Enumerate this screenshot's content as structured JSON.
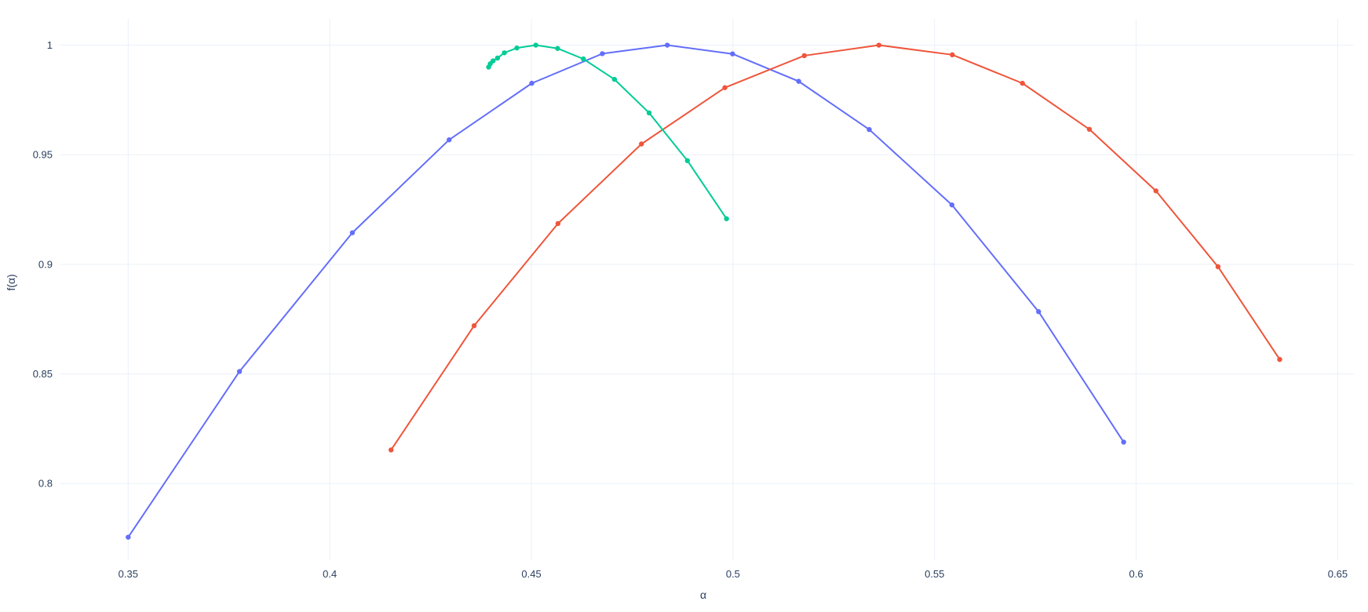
{
  "chart_data": {
    "type": "line",
    "title": "",
    "xlabel": "α",
    "ylabel": "f(α)",
    "xlim": [
      0.333,
      0.654
    ],
    "ylim": [
      0.765,
      1.012
    ],
    "x_ticks": [
      0.35,
      0.4,
      0.45,
      0.5,
      0.55,
      0.6,
      0.65
    ],
    "x_tick_labels": [
      "0.35",
      "0.4",
      "0.45",
      "0.5",
      "0.55",
      "0.6",
      "0.65"
    ],
    "y_ticks": [
      0.8,
      0.85,
      0.9,
      0.95,
      1.0
    ],
    "y_tick_labels": [
      "0.8",
      "0.85",
      "0.9",
      "0.95",
      "1"
    ],
    "grid": true,
    "legend": "none",
    "series": [
      {
        "color": "#636efa",
        "x": [
          0.35,
          0.3776,
          0.4056,
          0.4296,
          0.4501,
          0.4676,
          0.4837,
          0.4999,
          0.5163,
          0.5338,
          0.5543,
          0.5758,
          0.5969
        ],
        "y": [
          0.7755,
          0.8511,
          0.9144,
          0.9568,
          0.9826,
          0.9961,
          1.0,
          0.996,
          0.9835,
          0.9615,
          0.9271,
          0.8784,
          0.8189
        ]
      },
      {
        "color": "#ef553b",
        "x": [
          0.4152,
          0.4358,
          0.4566,
          0.4773,
          0.498,
          0.5177,
          0.5362,
          0.5544,
          0.5718,
          0.5884,
          0.6049,
          0.6203,
          0.6356
        ],
        "y": [
          0.8153,
          0.872,
          0.9186,
          0.9549,
          0.9806,
          0.9952,
          1.0,
          0.9956,
          0.9826,
          0.9616,
          0.9335,
          0.8989,
          0.8566
        ]
      },
      {
        "color": "#00cc96",
        "x": [
          0.4394,
          0.4398,
          0.4405,
          0.4416,
          0.4433,
          0.4464,
          0.4511,
          0.4565,
          0.4629,
          0.4706,
          0.4792,
          0.4887,
          0.4984
        ],
        "y": [
          0.99,
          0.9915,
          0.9928,
          0.9941,
          0.9965,
          0.9987,
          1.0,
          0.9985,
          0.9937,
          0.9844,
          0.9691,
          0.9473,
          0.9208
        ]
      }
    ]
  }
}
